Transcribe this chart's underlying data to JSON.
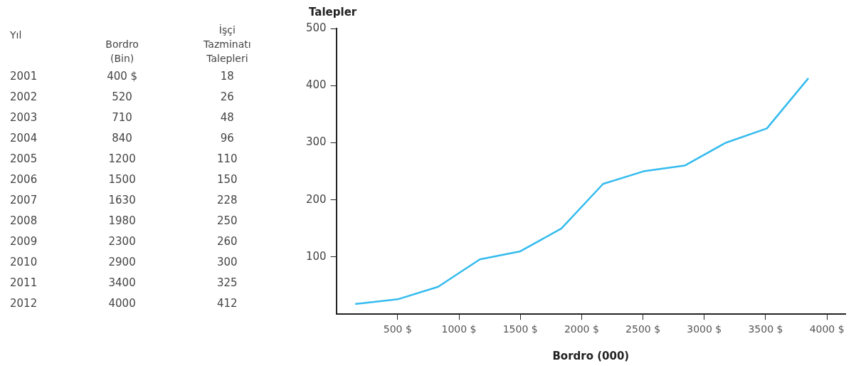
{
  "chart_data": {
    "type": "line",
    "xlabel": "Bordro (000)",
    "ylabel": "Talepler",
    "x": [
      160,
      500,
      830,
      1170,
      1500,
      1835,
      2175,
      2505,
      2840,
      3175,
      3510,
      3845
    ],
    "series": [
      {
        "color": "#33bbee",
        "values": [
          18,
          26,
          48,
          96,
          110,
          150,
          228,
          250,
          260,
          300,
          325,
          412
        ]
      }
    ],
    "xlim": [
      0,
      4150
    ],
    "xticks": [
      {
        "value": 500,
        "label": "500 $"
      },
      {
        "value": 1000,
        "label": "1000 $"
      },
      {
        "value": 1500,
        "label": "1500 $"
      },
      {
        "value": 2000,
        "label": "2000 $"
      },
      {
        "value": 2500,
        "label": "2500 $"
      },
      {
        "value": 3000,
        "label": "3000 $"
      },
      {
        "value": 3500,
        "label": "3500 $"
      },
      {
        "value": 4000,
        "label": "4000 $"
      }
    ],
    "ylim": [
      0,
      500
    ],
    "yticks": [
      100,
      200,
      300,
      400,
      500
    ],
    "grid": false,
    "legend": false,
    "marker": "none",
    "line_style": "solid",
    "annotations": [
      "Yıl",
      "Bordro\n(Bin)",
      "İşçi\nTazminatı\nTalepleri",
      "2001",
      "400  $",
      "18",
      "2002",
      "520",
      "26",
      "2003",
      "710",
      "48",
      "2004",
      "840",
      "96",
      "2005",
      "1200",
      "110",
      "2006",
      "1500",
      "150",
      "2007",
      "1630",
      "228",
      "2008",
      "1980",
      "250",
      "2009",
      "2300",
      "260",
      "2010",
      "2900",
      "300",
      "2011",
      "3400",
      "325",
      "2012",
      "4000",
      "412"
    ]
  }
}
